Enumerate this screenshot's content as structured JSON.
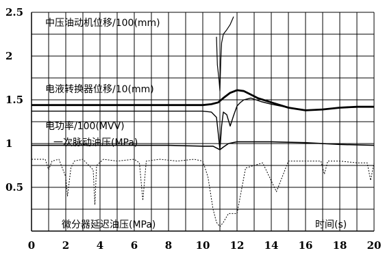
{
  "chart_data": {
    "type": "line",
    "title": "",
    "xlabel": "时间(s)",
    "ylabel": "",
    "xlim": [
      0,
      20
    ],
    "ylim": [
      0,
      2.5
    ],
    "grid": true,
    "x_ticks": [
      "0",
      "2",
      "4",
      "6",
      "8",
      "10",
      "12",
      "14",
      "16",
      "18",
      "20"
    ],
    "y_ticks": [
      "0.5",
      "1",
      "1.5",
      "2",
      "2.5"
    ],
    "series_labels": [
      "中压油动机位移/100(mm)",
      "电液转换器位移/10(mm)",
      "电功率/100(MVV)",
      "一次脉动油压(MPa)",
      "微分器延迟油压(MPa)"
    ],
    "series": [
      {
        "name": "中压油动机位移/100(mm)",
        "x": [
          10.8,
          10.85,
          10.95,
          11.0,
          11.05,
          11.1,
          11.2,
          11.4,
          11.6,
          11.8
        ],
        "y": [
          2.22,
          1.9,
          1.72,
          1.6,
          1.95,
          2.15,
          2.25,
          2.3,
          2.36,
          2.45
        ]
      },
      {
        "name": "电液转换器位移/10(mm)",
        "x": [
          0,
          2,
          4,
          6,
          8,
          10,
          10.5,
          10.9,
          11.2,
          11.6,
          12.0,
          12.4,
          12.8,
          13.2,
          14.0,
          15.0,
          16.0,
          17.0,
          18.0,
          19.0,
          20.0
        ],
        "y": [
          1.44,
          1.44,
          1.44,
          1.44,
          1.44,
          1.44,
          1.45,
          1.47,
          1.52,
          1.58,
          1.61,
          1.6,
          1.56,
          1.52,
          1.47,
          1.41,
          1.38,
          1.39,
          1.41,
          1.42,
          1.42
        ]
      },
      {
        "name": "电功率/100(MVV)",
        "x": [
          0,
          4,
          8,
          10,
          10.5,
          10.8,
          10.9,
          11.0,
          11.1,
          11.2,
          11.4,
          11.6,
          11.8,
          12.0,
          12.2,
          12.4,
          12.8,
          13.4,
          14.0,
          15.0,
          16.0,
          17.0,
          18.0,
          20.0
        ],
        "y": [
          1.37,
          1.37,
          1.37,
          1.37,
          1.36,
          1.3,
          1.12,
          0.93,
          1.2,
          1.36,
          1.33,
          1.2,
          1.32,
          1.43,
          1.47,
          1.5,
          1.52,
          1.48,
          1.45,
          1.41,
          1.38,
          1.39,
          1.41,
          1.42
        ]
      },
      {
        "name": "一次脉动油压(MPa)",
        "x": [
          0,
          2,
          4,
          6,
          8,
          10,
          10.6,
          10.8,
          11.0,
          11.2,
          11.5,
          12.0,
          13.0,
          14.0,
          16.0,
          18.0,
          20.0
        ],
        "y": [
          0.98,
          0.98,
          0.98,
          0.98,
          0.98,
          0.97,
          0.97,
          0.95,
          0.93,
          0.96,
          1.0,
          1.02,
          1.02,
          1.02,
          1.01,
          0.99,
          0.98
        ]
      },
      {
        "name": "微分器延迟油压(MPa)",
        "x": [
          0,
          0.8,
          1.0,
          1.2,
          1.6,
          2.0,
          2.1,
          2.3,
          2.5,
          3.0,
          3.6,
          3.7,
          3.8,
          4.2,
          5.0,
          6.0,
          6.3,
          6.5,
          6.7,
          7.5,
          8.5,
          9.5,
          10.0,
          10.3,
          10.6,
          10.8,
          11.0,
          11.2,
          11.5,
          12.0,
          12.5,
          13.5,
          14.3,
          15.0,
          16.0,
          16.9,
          17.1,
          17.3,
          18.0,
          19.0,
          19.6,
          19.8,
          20.0
        ],
        "y": [
          0.82,
          0.82,
          0.7,
          0.8,
          0.82,
          0.62,
          0.4,
          0.72,
          0.8,
          0.82,
          0.7,
          0.3,
          0.75,
          0.82,
          0.8,
          0.82,
          0.78,
          0.35,
          0.8,
          0.82,
          0.8,
          0.82,
          0.8,
          0.62,
          0.25,
          0.1,
          0.05,
          0.1,
          0.2,
          0.2,
          0.72,
          0.78,
          0.45,
          0.8,
          0.8,
          0.8,
          0.65,
          0.8,
          0.8,
          0.78,
          0.78,
          0.58,
          0.78
        ]
      }
    ]
  }
}
